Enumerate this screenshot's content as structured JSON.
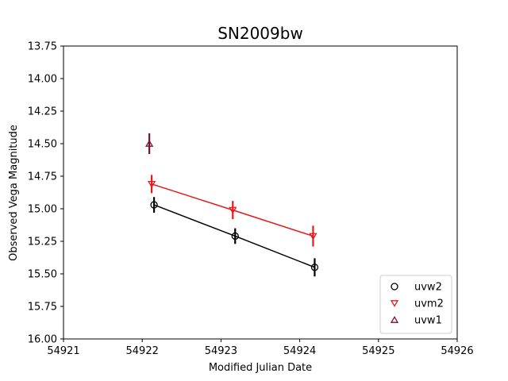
{
  "chart_data": {
    "type": "scatter",
    "title": "SN2009bw",
    "xlabel": "Modified Julian Date",
    "ylabel": "Observed Vega Magnitude",
    "xlim": [
      54921,
      54926
    ],
    "ylim": [
      16.0,
      13.75
    ],
    "y_inverted": true,
    "x_ticks": [
      54921,
      54922,
      54923,
      54924,
      54925,
      54926
    ],
    "x_tick_labels": [
      "54921",
      "54922",
      "54923",
      "54924",
      "54925",
      "54926"
    ],
    "y_ticks": [
      13.75,
      14.0,
      14.25,
      14.5,
      14.75,
      15.0,
      15.25,
      15.5,
      15.75,
      16.0
    ],
    "y_tick_labels": [
      "13.75",
      "14.00",
      "14.25",
      "14.50",
      "14.75",
      "15.00",
      "15.25",
      "15.50",
      "15.75",
      "16.00"
    ],
    "grid": false,
    "legend_position": "lower-right",
    "series": [
      {
        "name": "uvw2",
        "marker": "circle",
        "color": "#000000",
        "line": true,
        "points": [
          {
            "x": 54922.15,
            "y": 14.97,
            "err": 0.06
          },
          {
            "x": 54923.18,
            "y": 15.21,
            "err": 0.06
          },
          {
            "x": 54924.19,
            "y": 15.45,
            "err": 0.07
          }
        ]
      },
      {
        "name": "uvm2",
        "marker": "triangle-down",
        "color": "#e41a1c",
        "line": true,
        "points": [
          {
            "x": 54922.12,
            "y": 14.81,
            "err": 0.07
          },
          {
            "x": 54923.15,
            "y": 15.01,
            "err": 0.07
          },
          {
            "x": 54924.17,
            "y": 15.21,
            "err": 0.08
          }
        ]
      },
      {
        "name": "uvw1",
        "marker": "triangle-up",
        "color": "#7b1030",
        "line": false,
        "points": [
          {
            "x": 54922.09,
            "y": 14.5,
            "err": 0.08
          }
        ]
      }
    ]
  }
}
